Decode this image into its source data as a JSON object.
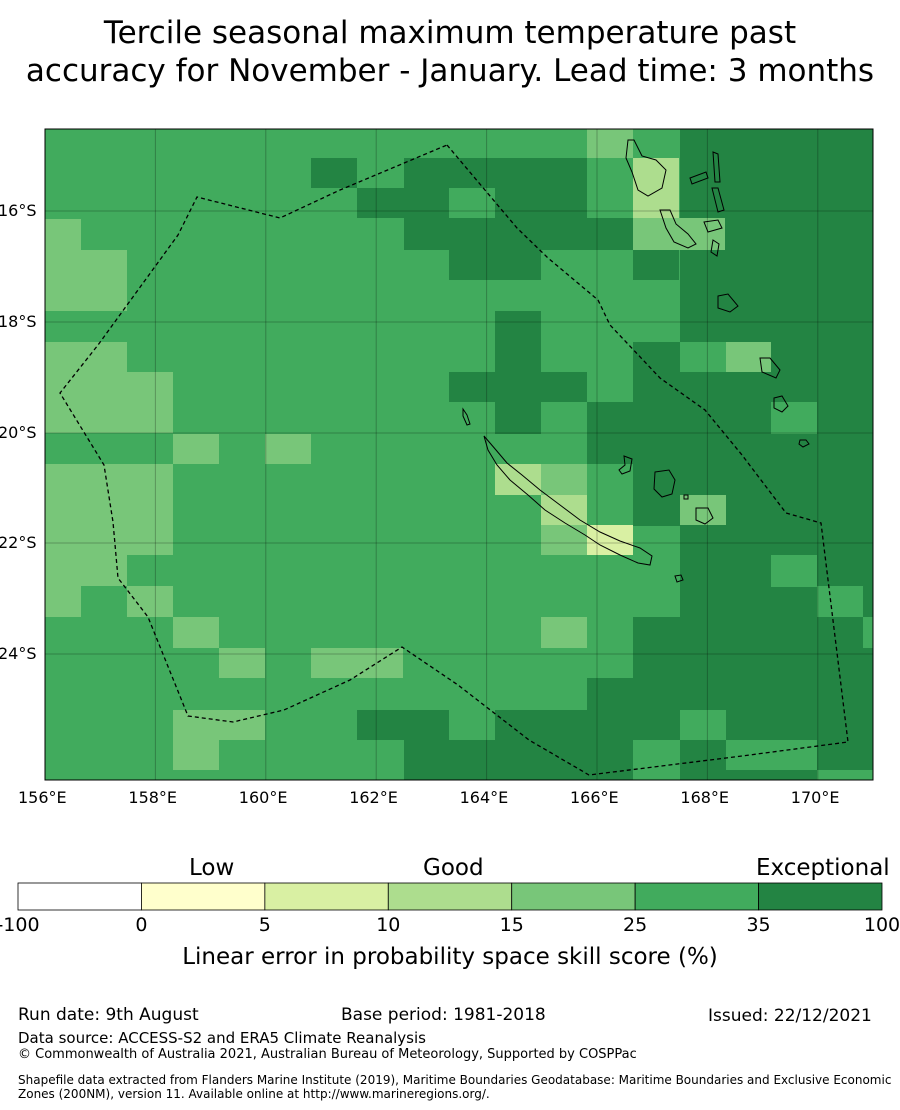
{
  "title_line1": "Tercile seasonal maximum temperature past",
  "title_line2": "accuracy for November - January. Lead time: 3 months",
  "map": {
    "lon_range": [
      156,
      171
    ],
    "lat_range": [
      -26.5,
      -14.7
    ],
    "lon_ticks": [
      "156°E",
      "158°E",
      "160°E",
      "162°E",
      "164°E",
      "166°E",
      "168°E",
      "170°E"
    ],
    "lat_ticks": [
      "16°S",
      "18°S",
      "20°S",
      "22°S",
      "24°S"
    ],
    "grid": "on"
  },
  "colorbar": {
    "categories": [
      "Low",
      "Good",
      "Exceptional"
    ],
    "ticks": [
      "-100",
      "0",
      "5",
      "10",
      "15",
      "25",
      "35",
      "100"
    ],
    "colors": [
      "#ffffff",
      "#ffffcc",
      "#d9f0a3",
      "#addd8e",
      "#78c679",
      "#41ab5d",
      "#238443"
    ],
    "label": "Linear error in probability space skill score (%)"
  },
  "footer": {
    "run_date": "Run date: 9th August",
    "base_period": "Base period: 1981-2018",
    "issued": "Issued: 22/12/2021",
    "data_source": "Data source: ACCESS-S2 and ERA5 Climate Reanalysis",
    "copyright": "© Commonwealth of Australia 2021, Australian Bureau of Meteorology, Supported by COSPPac",
    "shapefile_1": "Shapefile data extracted from Flanders Marine Institute (2019), Maritime Boundaries Geodatabase: Maritime Boundaries and Exclusive Economic",
    "shapefile_2": "Zones (200NM), version 11. Available online at http://www.marineregions.org/."
  }
}
